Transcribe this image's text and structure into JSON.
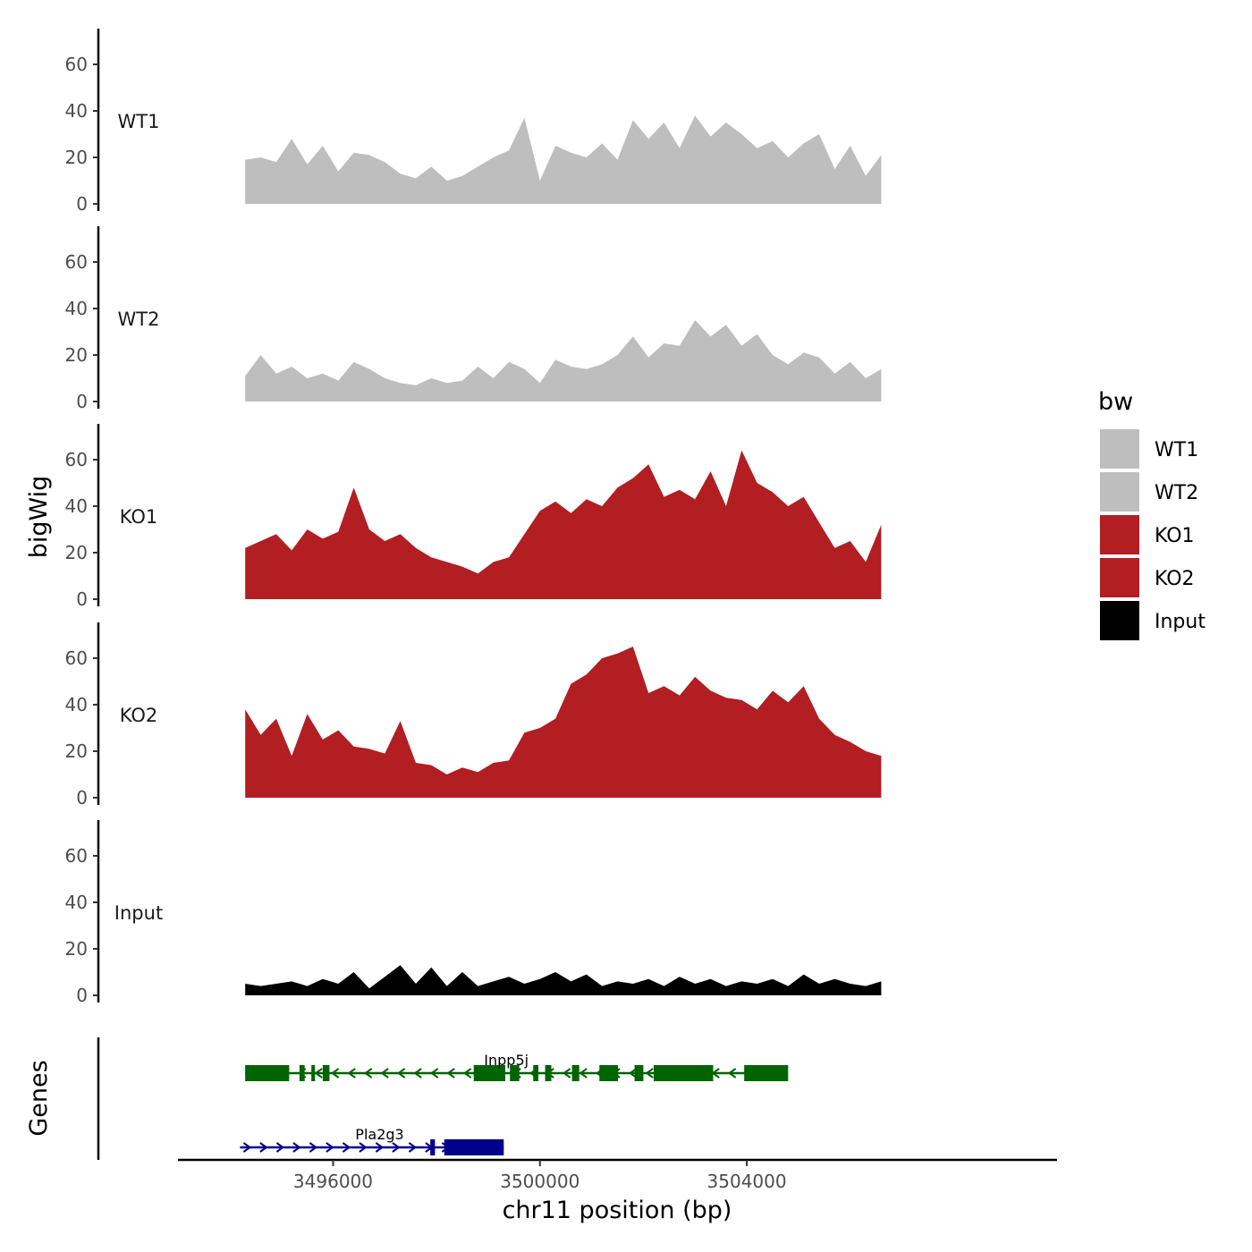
{
  "chart_data": {
    "type": "area",
    "title": "",
    "xlabel": "chr11 position (bp)",
    "ylabel": "bigWig",
    "genes_label": "Genes",
    "xlim": [
      3493000,
      3510000
    ],
    "ylim": [
      0,
      75
    ],
    "x_ticks": [
      {
        "value": 3496000,
        "label": "3496000"
      },
      {
        "value": 3500000,
        "label": "3500000"
      },
      {
        "value": 3504000,
        "label": "3504000"
      }
    ],
    "y_ticks": [
      {
        "value": 0,
        "label": "0"
      },
      {
        "value": 20,
        "label": "20"
      },
      {
        "value": 40,
        "label": "40"
      },
      {
        "value": 60,
        "label": "60"
      }
    ],
    "x": [
      3494300,
      3494600,
      3494900,
      3495200,
      3495500,
      3495800,
      3496100,
      3496400,
      3496700,
      3497000,
      3497300,
      3497600,
      3497900,
      3498200,
      3498500,
      3498800,
      3499100,
      3499400,
      3499700,
      3500000,
      3500300,
      3500600,
      3500900,
      3501200,
      3501500,
      3501800,
      3502100,
      3502400,
      3502700,
      3503000,
      3503300,
      3503600,
      3503900,
      3504200,
      3504500,
      3504800,
      3505100,
      3505400,
      3505700,
      3506000,
      3506300,
      3506600
    ],
    "series": [
      {
        "name": "WT1",
        "color": "#bebebe",
        "values": [
          19,
          20,
          18,
          28,
          17,
          25,
          14,
          22,
          21,
          18,
          13,
          11,
          16,
          10,
          12,
          16,
          20,
          23,
          37,
          10,
          25,
          22,
          20,
          26,
          19,
          36,
          28,
          35,
          24,
          38,
          29,
          35,
          30,
          24,
          27,
          20,
          26,
          30,
          15,
          25,
          12,
          21
        ]
      },
      {
        "name": "WT2",
        "color": "#bebebe",
        "values": [
          11,
          20,
          12,
          15,
          10,
          12,
          9,
          17,
          14,
          10,
          8,
          7,
          10,
          8,
          9,
          15,
          10,
          17,
          14,
          8,
          18,
          15,
          14,
          16,
          20,
          28,
          19,
          25,
          24,
          35,
          28,
          33,
          24,
          29,
          20,
          16,
          21,
          19,
          12,
          17,
          10,
          14
        ]
      },
      {
        "name": "KO1",
        "color": "#b21e21",
        "values": [
          22,
          25,
          28,
          21,
          30,
          26,
          29,
          48,
          30,
          25,
          28,
          22,
          18,
          16,
          14,
          11,
          16,
          18,
          28,
          38,
          42,
          37,
          43,
          40,
          48,
          52,
          58,
          44,
          47,
          43,
          55,
          40,
          64,
          50,
          46,
          40,
          44,
          33,
          22,
          25,
          16,
          32
        ]
      },
      {
        "name": "KO2",
        "color": "#b21e21",
        "values": [
          38,
          27,
          34,
          18,
          36,
          25,
          29,
          22,
          21,
          19,
          33,
          15,
          14,
          10,
          13,
          11,
          15,
          16,
          28,
          30,
          34,
          49,
          53,
          60,
          62,
          65,
          45,
          48,
          44,
          52,
          46,
          43,
          42,
          38,
          46,
          41,
          48,
          34,
          27,
          24,
          20,
          18
        ]
      },
      {
        "name": "Input",
        "color": "#000000",
        "values": [
          5,
          4,
          5,
          6,
          4,
          7,
          5,
          10,
          3,
          8,
          13,
          5,
          12,
          4,
          10,
          4,
          6,
          8,
          5,
          7,
          10,
          6,
          9,
          4,
          6,
          5,
          7,
          4,
          8,
          5,
          7,
          4,
          6,
          5,
          7,
          4,
          9,
          5,
          7,
          5,
          4,
          6
        ]
      }
    ],
    "legend": {
      "title": "bw",
      "position": "right",
      "entries": [
        {
          "label": "WT1",
          "color": "#bebebe"
        },
        {
          "label": "WT2",
          "color": "#bebebe"
        },
        {
          "label": "KO1",
          "color": "#b21e21"
        },
        {
          "label": "KO2",
          "color": "#b21e21"
        },
        {
          "label": "Input",
          "color": "#000000"
        }
      ]
    },
    "genes": [
      {
        "name": "Inpp5j",
        "strand": "-",
        "color": "#006400",
        "start": 3494300,
        "end": 3504750,
        "exons": [
          [
            3494300,
            3495150
          ],
          [
            3495350,
            3495450
          ],
          [
            3495580,
            3495650
          ],
          [
            3495800,
            3495930
          ],
          [
            3498720,
            3499330
          ],
          [
            3499420,
            3499600
          ],
          [
            3499870,
            3499970
          ],
          [
            3500100,
            3500220
          ],
          [
            3500620,
            3500760
          ],
          [
            3501150,
            3501510
          ],
          [
            3501830,
            3502000
          ],
          [
            3502200,
            3503350
          ],
          [
            3503950,
            3504800
          ]
        ]
      },
      {
        "name": "Pla2g3",
        "strand": "+",
        "color": "#00008b",
        "start": 3494200,
        "end": 3499300,
        "exons": [
          [
            3497880,
            3497970
          ],
          [
            3498150,
            3499300
          ]
        ]
      }
    ]
  }
}
